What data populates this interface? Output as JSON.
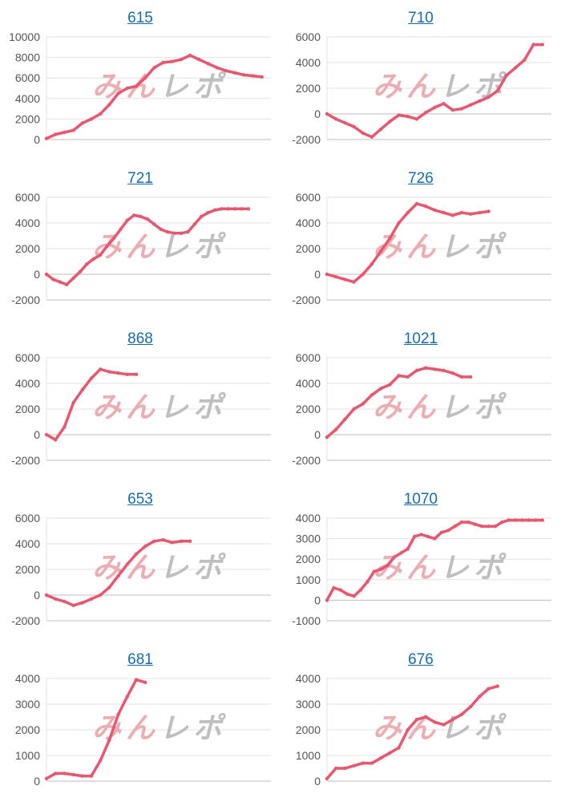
{
  "colors": {
    "line": "#e8566f",
    "grid": "#e3e3e3",
    "axis": "#bdbdbd",
    "title_link": "#1a6aa8",
    "watermark_red": "#e8a0a8",
    "watermark_gray": "#b5b5b5"
  },
  "watermark": {
    "label": "みんレポ"
  },
  "chart_data": [
    {
      "type": "line",
      "title": "615",
      "ylim": [
        0,
        10000
      ],
      "yticks": [
        0,
        2000,
        4000,
        6000,
        8000,
        10000
      ],
      "xlim": [
        0,
        100
      ],
      "grid": true,
      "x": [
        0,
        4,
        8,
        12,
        16,
        20,
        24,
        28,
        32,
        36,
        40,
        44,
        48,
        52,
        56,
        60,
        64,
        68,
        72,
        76,
        80,
        84,
        88,
        92,
        96
      ],
      "values": [
        100,
        500,
        700,
        900,
        1600,
        2000,
        2500,
        3400,
        4500,
        5000,
        5200,
        6000,
        7000,
        7500,
        7600,
        7800,
        8200,
        7800,
        7400,
        7000,
        6700,
        6500,
        6300,
        6200,
        6100
      ]
    },
    {
      "type": "line",
      "title": "710",
      "ylim": [
        -2000,
        6000
      ],
      "yticks": [
        -2000,
        0,
        2000,
        4000,
        6000
      ],
      "xlim": [
        0,
        100
      ],
      "grid": true,
      "x": [
        0,
        4,
        8,
        12,
        16,
        20,
        24,
        28,
        32,
        36,
        40,
        44,
        48,
        52,
        56,
        60,
        64,
        68,
        72,
        76,
        80,
        84,
        88,
        92,
        96
      ],
      "values": [
        0,
        -400,
        -700,
        -1000,
        -1500,
        -1800,
        -1200,
        -600,
        -100,
        -200,
        -400,
        100,
        500,
        800,
        300,
        400,
        700,
        1000,
        1300,
        1800,
        3000,
        3600,
        4200,
        5400,
        5400
      ]
    },
    {
      "type": "line",
      "title": "721",
      "ylim": [
        -2000,
        6000
      ],
      "yticks": [
        -2000,
        0,
        2000,
        4000,
        6000
      ],
      "xlim": [
        0,
        100
      ],
      "grid": true,
      "x": [
        0,
        3,
        6,
        9,
        12,
        15,
        18,
        21,
        24,
        27,
        30,
        33,
        36,
        39,
        42,
        45,
        48,
        51,
        54,
        57,
        60,
        63,
        66,
        69,
        72,
        75,
        78,
        81,
        84,
        87,
        90
      ],
      "values": [
        0,
        -400,
        -600,
        -800,
        -300,
        200,
        800,
        1200,
        1500,
        2200,
        2800,
        3500,
        4200,
        4600,
        4500,
        4300,
        3900,
        3500,
        3300,
        3200,
        3200,
        3300,
        3900,
        4500,
        4800,
        5000,
        5100,
        5100,
        5100,
        5100,
        5100
      ]
    },
    {
      "type": "line",
      "title": "726",
      "ylim": [
        -2000,
        6000
      ],
      "yticks": [
        -2000,
        0,
        2000,
        4000,
        6000
      ],
      "xlim": [
        0,
        100
      ],
      "grid": true,
      "x": [
        0,
        4,
        8,
        12,
        16,
        20,
        24,
        28,
        32,
        36,
        40,
        44,
        48,
        52,
        56,
        60,
        64,
        68,
        72
      ],
      "values": [
        0,
        -200,
        -400,
        -600,
        0,
        800,
        1800,
        2800,
        4000,
        4800,
        5500,
        5300,
        5000,
        4800,
        4600,
        4800,
        4700,
        4800,
        4900
      ]
    },
    {
      "type": "line",
      "title": "868",
      "ylim": [
        -2000,
        6000
      ],
      "yticks": [
        -2000,
        0,
        2000,
        4000,
        6000
      ],
      "xlim": [
        0,
        100
      ],
      "grid": true,
      "x": [
        0,
        4,
        8,
        12,
        16,
        20,
        24,
        28,
        32,
        36,
        40
      ],
      "values": [
        0,
        -400,
        600,
        2500,
        3500,
        4400,
        5100,
        4900,
        4800,
        4700,
        4700
      ]
    },
    {
      "type": "line",
      "title": "1021",
      "ylim": [
        -2000,
        6000
      ],
      "yticks": [
        -2000,
        0,
        2000,
        4000,
        6000
      ],
      "xlim": [
        0,
        100
      ],
      "grid": true,
      "x": [
        0,
        4,
        8,
        12,
        16,
        20,
        24,
        28,
        32,
        36,
        40,
        44,
        48,
        52,
        56,
        60,
        64
      ],
      "values": [
        -200,
        400,
        1200,
        2000,
        2400,
        3100,
        3600,
        3900,
        4600,
        4500,
        5000,
        5200,
        5100,
        5000,
        4800,
        4500,
        4500
      ]
    },
    {
      "type": "line",
      "title": "653",
      "ylim": [
        -2000,
        6000
      ],
      "yticks": [
        -2000,
        0,
        2000,
        4000,
        6000
      ],
      "xlim": [
        0,
        100
      ],
      "grid": true,
      "x": [
        0,
        4,
        8,
        12,
        16,
        20,
        24,
        28,
        32,
        36,
        40,
        44,
        48,
        52,
        56,
        60,
        64
      ],
      "values": [
        0,
        -300,
        -500,
        -800,
        -600,
        -300,
        0,
        600,
        1500,
        2400,
        3200,
        3800,
        4200,
        4300,
        4100,
        4200,
        4200
      ]
    },
    {
      "type": "line",
      "title": "1070",
      "ylim": [
        -1000,
        4000
      ],
      "yticks": [
        -1000,
        0,
        1000,
        2000,
        3000,
        4000
      ],
      "xlim": [
        0,
        100
      ],
      "grid": true,
      "x": [
        0,
        3,
        6,
        9,
        12,
        15,
        18,
        21,
        24,
        27,
        30,
        33,
        36,
        39,
        42,
        45,
        48,
        51,
        54,
        57,
        60,
        63,
        66,
        69,
        72,
        75,
        78,
        81,
        84,
        87,
        90,
        93,
        96
      ],
      "values": [
        0,
        600,
        500,
        300,
        200,
        500,
        900,
        1400,
        1500,
        1700,
        2100,
        2300,
        2500,
        3100,
        3200,
        3100,
        3000,
        3300,
        3400,
        3600,
        3800,
        3800,
        3700,
        3600,
        3600,
        3600,
        3800,
        3900,
        3900,
        3900,
        3900,
        3900,
        3900
      ]
    },
    {
      "type": "line",
      "title": "681",
      "ylim": [
        0,
        4000
      ],
      "yticks": [
        0,
        1000,
        2000,
        3000,
        4000
      ],
      "xlim": [
        0,
        100
      ],
      "grid": true,
      "x": [
        0,
        4,
        8,
        12,
        16,
        20,
        24,
        28,
        32,
        36,
        40,
        44
      ],
      "values": [
        100,
        300,
        300,
        250,
        200,
        200,
        800,
        1600,
        2600,
        3300,
        3950,
        3850
      ]
    },
    {
      "type": "line",
      "title": "676",
      "ylim": [
        0,
        4000
      ],
      "yticks": [
        0,
        1000,
        2000,
        3000,
        4000
      ],
      "xlim": [
        0,
        100
      ],
      "grid": true,
      "x": [
        0,
        4,
        8,
        12,
        16,
        20,
        24,
        28,
        32,
        36,
        40,
        44,
        48,
        52,
        56,
        60,
        64,
        68,
        72,
        76
      ],
      "values": [
        100,
        500,
        500,
        600,
        700,
        700,
        900,
        1100,
        1300,
        2000,
        2400,
        2500,
        2300,
        2200,
        2400,
        2600,
        2900,
        3300,
        3600,
        3700
      ]
    }
  ]
}
